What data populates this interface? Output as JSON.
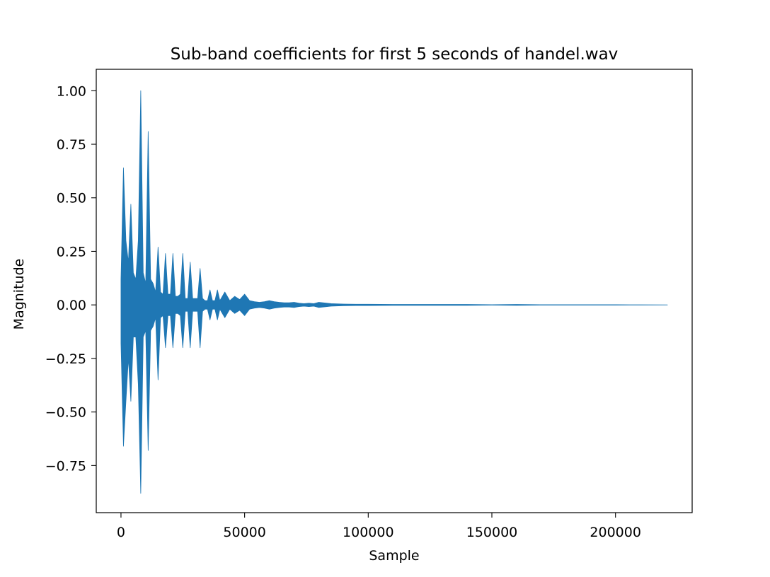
{
  "chart_data": {
    "type": "line",
    "title": "Sub-band coefficients for first 5 seconds of handel.wav",
    "xlabel": "Sample",
    "ylabel": "Magnitude",
    "xlim": [
      -10000,
      231000
    ],
    "ylim": [
      -0.97,
      1.1
    ],
    "x_ticks": [
      0,
      50000,
      100000,
      150000,
      200000
    ],
    "x_tick_labels": [
      "0",
      "50000",
      "100000",
      "150000",
      "200000"
    ],
    "y_ticks": [
      1.0,
      0.75,
      0.5,
      0.25,
      0.0,
      -0.25,
      -0.5,
      -0.75
    ],
    "y_tick_labels": [
      "1.00",
      "0.75",
      "0.50",
      "0.25",
      "0.00",
      "−0.25",
      "−0.50",
      "−0.75"
    ],
    "grid": false,
    "line_color": "#1f77b4",
    "series": [
      {
        "envelope_x": [
          0,
          1000,
          2000,
          3000,
          4000,
          5000,
          6000,
          7000,
          8000,
          9000,
          10000,
          11000,
          12000,
          13000,
          14000,
          15000,
          16000,
          17000,
          18000,
          19000,
          20000,
          21000,
          22000,
          23000,
          24000,
          25000,
          26000,
          27000,
          28000,
          29000,
          30000,
          31000,
          32000,
          33000,
          34000,
          35000,
          36000,
          37000,
          38000,
          39000,
          40000,
          42000,
          44000,
          46000,
          48000,
          50000,
          52000,
          54000,
          56000,
          58000,
          60000,
          62000,
          64000,
          66000,
          68000,
          70000,
          72000,
          74000,
          76000,
          78000,
          80000,
          85000,
          90000,
          95000,
          100000,
          110000,
          120000,
          130000,
          140000,
          150000,
          160000,
          170000,
          180000,
          190000,
          200000,
          210000,
          221000
        ],
        "envelope_max": [
          0.12,
          0.64,
          0.3,
          0.2,
          0.47,
          0.15,
          0.12,
          0.3,
          1.0,
          0.15,
          0.1,
          0.81,
          0.12,
          0.1,
          0.06,
          0.27,
          0.06,
          0.05,
          0.24,
          0.05,
          0.05,
          0.24,
          0.04,
          0.04,
          0.05,
          0.24,
          0.03,
          0.03,
          0.2,
          0.03,
          0.03,
          0.03,
          0.17,
          0.03,
          0.02,
          0.02,
          0.07,
          0.02,
          0.02,
          0.07,
          0.02,
          0.06,
          0.02,
          0.04,
          0.025,
          0.05,
          0.02,
          0.015,
          0.012,
          0.015,
          0.02,
          0.015,
          0.012,
          0.01,
          0.01,
          0.012,
          0.008,
          0.006,
          0.008,
          0.006,
          0.012,
          0.006,
          0.004,
          0.003,
          0.003,
          0.002,
          0.002,
          0.002,
          0.002,
          0.001,
          0.002,
          0.001,
          0.001,
          0.001,
          0.001,
          0.0005,
          0.0
        ],
        "envelope_min": [
          -0.18,
          -0.66,
          -0.45,
          -0.25,
          -0.45,
          -0.15,
          -0.15,
          -0.37,
          -0.88,
          -0.15,
          -0.12,
          -0.68,
          -0.12,
          -0.1,
          -0.06,
          -0.35,
          -0.06,
          -0.05,
          -0.2,
          -0.05,
          -0.05,
          -0.2,
          -0.04,
          -0.04,
          -0.05,
          -0.2,
          -0.03,
          -0.03,
          -0.2,
          -0.03,
          -0.03,
          -0.03,
          -0.2,
          -0.03,
          -0.02,
          -0.02,
          -0.07,
          -0.02,
          -0.02,
          -0.07,
          -0.02,
          -0.06,
          -0.02,
          -0.04,
          -0.025,
          -0.05,
          -0.02,
          -0.015,
          -0.012,
          -0.015,
          -0.02,
          -0.015,
          -0.012,
          -0.01,
          -0.01,
          -0.012,
          -0.008,
          -0.006,
          -0.008,
          -0.006,
          -0.012,
          -0.006,
          -0.004,
          -0.003,
          -0.003,
          -0.002,
          -0.002,
          -0.002,
          -0.002,
          -0.001,
          -0.002,
          -0.001,
          -0.001,
          -0.001,
          -0.001,
          -0.0005,
          0.0
        ]
      }
    ]
  }
}
